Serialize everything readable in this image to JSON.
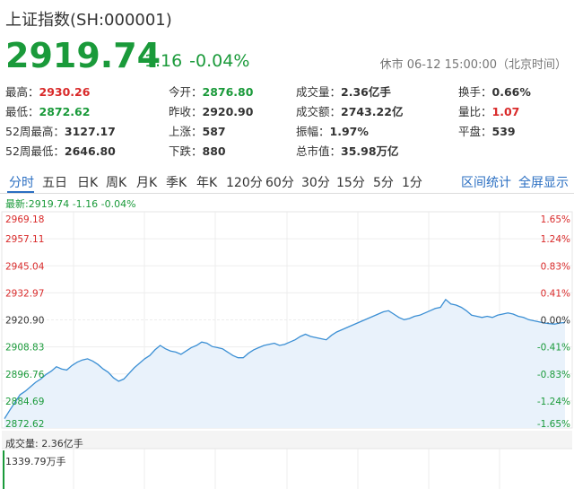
{
  "header": {
    "title": "上证指数(SH:000001)",
    "price": "2919.74",
    "change": "-1.16",
    "change_pct": "-0.04%",
    "status": "休市 06-12 15:00:00（北京时间）"
  },
  "stats": {
    "high_label": "最高：",
    "high": "2930.26",
    "low_label": "最低：",
    "low": "2872.62",
    "w52_high_label": "52周最高：",
    "w52_high": "3127.17",
    "w52_low_label": "52周最低：",
    "w52_low": "2646.80",
    "open_label": "今开：",
    "open": "2876.80",
    "prev_close_label": "昨收：",
    "prev_close": "2920.90",
    "up_label": "上涨：",
    "up": "587",
    "down_label": "下跌：",
    "down": "880",
    "volume_label": "成交量：",
    "volume": "2.36亿手",
    "amount_label": "成交额：",
    "amount": "2743.22亿",
    "amplitude_label": "振幅：",
    "amplitude": "1.97%",
    "mktcap_label": "总市值：",
    "mktcap": "35.98万亿",
    "turnover_label": "换手：",
    "turnover": "0.66%",
    "vol_ratio_label": "量比：",
    "vol_ratio": "1.07",
    "flat_label": "平盘：",
    "flat": "539"
  },
  "tabs": [
    "分时",
    "五日",
    "日K",
    "周K",
    "月K",
    "季K",
    "年K",
    "120分",
    "60分",
    "30分",
    "15分",
    "5分",
    "1分"
  ],
  "tab_links": [
    "区间统计",
    "全屏显示"
  ],
  "latest_line": "最新:2919.74 -1.16 -0.04%",
  "volume_panel": {
    "label": "成交量: 2.36亿手",
    "max": "1339.79万手"
  },
  "colors": {
    "up": "#d92a2a",
    "down": "#1a9a3a",
    "line": "#3b8fd4",
    "accent": "#2b6fc2"
  },
  "chart_data": {
    "type": "area",
    "title": "",
    "xlabel": "",
    "ylabel": "",
    "ylim": [
      2872.62,
      2969.18
    ],
    "y_ticks": [
      "2969.18",
      "2957.11",
      "2945.04",
      "2932.97",
      "2920.90",
      "2908.83",
      "2896.76",
      "2884.69",
      "2872.62"
    ],
    "pct_ticks": [
      "1.65%",
      "1.24%",
      "0.83%",
      "0.41%",
      "0.00%",
      "-0.41%",
      "-0.83%",
      "-1.24%",
      "-1.65%"
    ],
    "reference": 2920.9,
    "grid": true,
    "series": [
      {
        "values": [
          2876.8,
          2880.5,
          2884.0,
          2887.5,
          2889.0,
          2891.0,
          2893.0,
          2894.5,
          2896.5,
          2898.0,
          2900.0,
          2899.0,
          2898.5,
          2900.5,
          2902.0,
          2903.0,
          2903.5,
          2902.5,
          2901.0,
          2899.0,
          2897.5,
          2895.0,
          2893.5,
          2894.5,
          2897.0,
          2899.5,
          2901.5,
          2903.5,
          2905.0,
          2907.5,
          2909.5,
          2908.0,
          2907.0,
          2906.5,
          2905.5,
          2907.0,
          2908.5,
          2909.5,
          2911.0,
          2910.5,
          2909.0,
          2908.5,
          2908.0,
          2906.5,
          2905.0,
          2904.0,
          2904.0,
          2906.0,
          2907.5,
          2908.5,
          2909.5,
          2910.0,
          2910.5,
          2909.5,
          2910.0,
          2911.0,
          2912.0,
          2913.5,
          2914.5,
          2913.5,
          2913.0,
          2912.5,
          2912.0,
          2914.0,
          2915.5,
          2916.5,
          2917.5,
          2918.5,
          2919.5,
          2920.5,
          2921.5,
          2922.5,
          2923.5,
          2924.5,
          2925.0,
          2923.5,
          2922.0,
          2921.0,
          2921.5,
          2922.5,
          2923.0,
          2924.0,
          2925.0,
          2926.0,
          2926.5,
          2930.0,
          2928.0,
          2927.5,
          2926.5,
          2925.0,
          2923.0,
          2922.5,
          2922.0,
          2922.5,
          2922.0,
          2923.0,
          2923.5,
          2924.0,
          2923.5,
          2922.5,
          2922.0,
          2921.0,
          2920.5,
          2920.0,
          2919.5,
          2919.2,
          2919.0,
          2919.5,
          2919.74
        ]
      }
    ],
    "volume_max": 1339.79
  }
}
